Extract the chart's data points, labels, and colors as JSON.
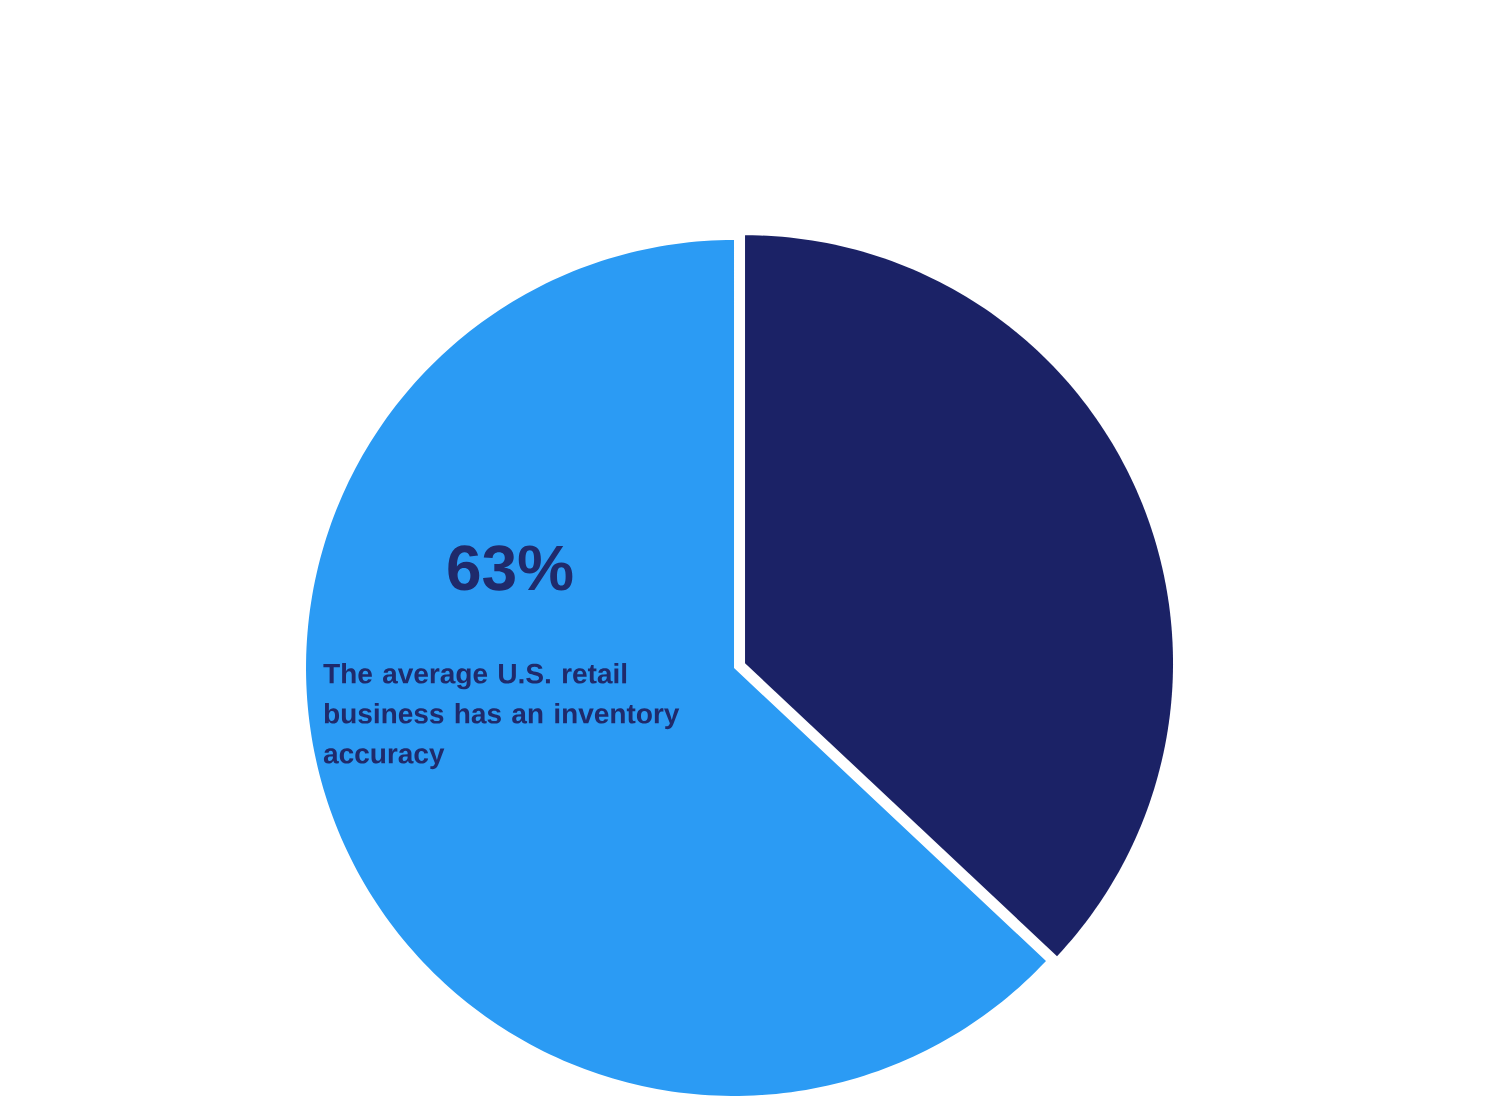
{
  "chart_data": {
    "type": "pie",
    "categories": [
      null,
      null
    ],
    "values": [
      63,
      37
    ],
    "colors": [
      "#2b9bf4",
      "#1b2266"
    ],
    "value_labels": [
      "63%",
      null
    ],
    "annotations": [
      "The average U.S. retail business has an inventory accuracy"
    ]
  }
}
